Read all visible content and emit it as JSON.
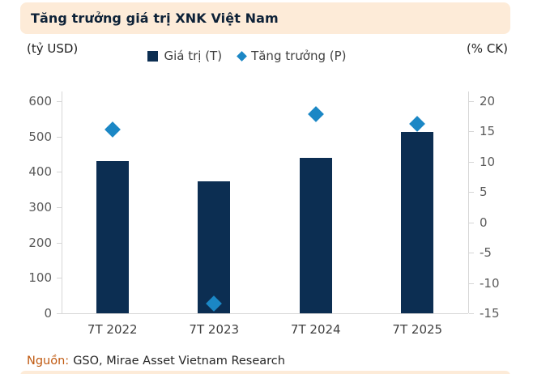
{
  "header": {
    "title": "Tăng trưởng giá trị XNK Việt Nam"
  },
  "legend": {
    "items": [
      {
        "label": "Giá trị (T)",
        "marker": "square",
        "color": "#0c2e52"
      },
      {
        "label": "Tăng trưởng (P)",
        "marker": "diamond",
        "color": "#1b87c5"
      }
    ]
  },
  "source": {
    "prefix": "Nguồn:",
    "text": "GSO, Mirae Asset Vietnam Research"
  },
  "colors": {
    "bar": "#0c2e52",
    "diamond": "#1b87c5",
    "header_background": "#fdebd8",
    "axis": "#d6d6d6",
    "tick_text": "#595959",
    "source_prefix": "#c05a11"
  },
  "chart_data": {
    "type": "bar",
    "subtype": "combo-bar-scatter",
    "title": "Tăng trưởng giá trị XNK Việt Nam",
    "categories": [
      "7T 2022",
      "7T 2023",
      "7T 2024",
      "7T 2025"
    ],
    "series": [
      {
        "name": "Giá trị (T)",
        "type": "bar",
        "axis": "left",
        "color": "#0c2e52",
        "values": [
          431,
          373,
          440,
          513
        ]
      },
      {
        "name": "Tăng trưởng (P)",
        "type": "scatter",
        "marker": "diamond",
        "axis": "right",
        "color": "#1b87c5",
        "values": [
          15.3,
          -13.4,
          17.9,
          16.2
        ]
      }
    ],
    "left_axis": {
      "label": "(tỷ USD)",
      "min": 0,
      "max": 600,
      "step": 100,
      "ticks": [
        600,
        500,
        400,
        300,
        200,
        100,
        0
      ]
    },
    "right_axis": {
      "label": "(% CK)",
      "min": -15,
      "max": 20,
      "step": 5,
      "ticks": [
        20,
        15,
        10,
        5,
        0,
        -5,
        -10,
        -15
      ]
    },
    "grid": false,
    "legend_position": "top"
  }
}
